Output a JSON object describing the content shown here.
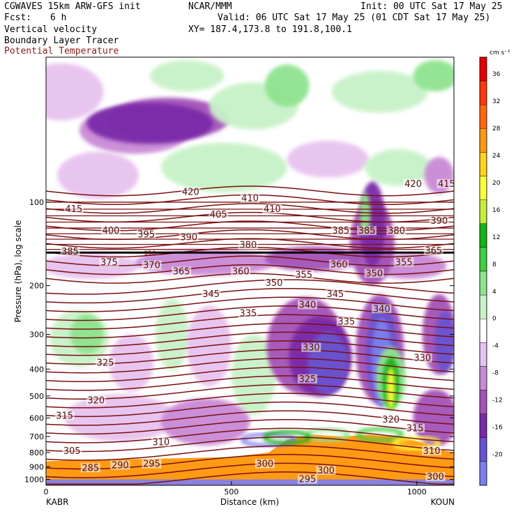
{
  "header": {
    "model": "CGWAVES 15km ARW-GFS init",
    "org": "NCAR/MMM",
    "init": "Init: 00 UTC Sat 17 May 25",
    "fcst_label": "Fcst:",
    "fcst_value": "6 h",
    "valid": "Valid: 06 UTC Sat 17 May 25 (01 CDT Sat 17 May 25)",
    "field1": "Vertical velocity",
    "field2": "Boundary Layer Tracer",
    "field3": "Potential Temperature",
    "xy": "XY= 187.4,173.8 to 191.8,100.1"
  },
  "colors": {
    "theta_line": "#7a0f0f",
    "theta_text": "#8b1a1a",
    "tropopause": "#000000"
  },
  "chart_data": {
    "type": "heatmap",
    "title": "Vertical velocity / Boundary Layer Tracer / Potential Temperature",
    "xlabel": "Distance (km)",
    "ylabel": "Pressure (hPa), log scale",
    "xlim": [
      0,
      1100
    ],
    "ylim": [
      1050,
      30
    ],
    "y_scale": "log",
    "x_ticks": [
      0,
      500,
      1000
    ],
    "x_tick_labels": [
      "0",
      "500",
      "1000"
    ],
    "y_ticks": [
      100,
      200,
      300,
      400,
      500,
      600,
      700,
      800,
      900,
      1000
    ],
    "y_tick_labels": [
      "100",
      "200",
      "300",
      "400",
      "500",
      "600",
      "700",
      "800",
      "900",
      "1000"
    ],
    "x_end_labels": {
      "left": "KABR",
      "right": "KOUN"
    },
    "colorbar": {
      "unit": "cm s⁻¹",
      "levels": [
        -20,
        -16,
        -12,
        -8,
        -4,
        0,
        4,
        8,
        12,
        16,
        20,
        24,
        28,
        32,
        36
      ],
      "level_labels": [
        "-20",
        "-16",
        "-12",
        "-8",
        "-4",
        "0",
        "4",
        "8",
        "12",
        "16",
        "20",
        "24",
        "28",
        "32",
        "36"
      ],
      "colors": [
        "#7b7ff0",
        "#6a53d0",
        "#7a2aa8",
        "#a353b8",
        "#c98ad6",
        "#e7c2ef",
        "#ffffff",
        "#c8f2c8",
        "#8fe38f",
        "#3fcf3f",
        "#16b316",
        "#c4ee3c",
        "#ffff3c",
        "#ffd21e",
        "#ff9a14",
        "#ff6a10",
        "#ff3a0a",
        "#e60000"
      ]
    },
    "theta_contour_labels": [
      {
        "label": "420",
        "x": 390,
        "p": 92
      },
      {
        "label": "410",
        "x": 550,
        "p": 97
      },
      {
        "label": "420",
        "x": 990,
        "p": 86
      },
      {
        "label": "415",
        "x": 1080,
        "p": 86
      },
      {
        "label": "415",
        "x": 75,
        "p": 106
      },
      {
        "label": "405",
        "x": 465,
        "p": 111
      },
      {
        "label": "410",
        "x": 610,
        "p": 106
      },
      {
        "label": "400",
        "x": 175,
        "p": 127
      },
      {
        "label": "395",
        "x": 270,
        "p": 131
      },
      {
        "label": "390",
        "x": 385,
        "p": 134
      },
      {
        "label": "385",
        "x": 795,
        "p": 127
      },
      {
        "label": "385",
        "x": 865,
        "p": 127
      },
      {
        "label": "380",
        "x": 945,
        "p": 127
      },
      {
        "label": "390",
        "x": 1060,
        "p": 117
      },
      {
        "label": "380",
        "x": 545,
        "p": 143
      },
      {
        "label": "385",
        "x": 65,
        "p": 151
      },
      {
        "label": "375",
        "x": 170,
        "p": 165
      },
      {
        "label": "370",
        "x": 285,
        "p": 169
      },
      {
        "label": "365",
        "x": 365,
        "p": 178
      },
      {
        "label": "360",
        "x": 525,
        "p": 178
      },
      {
        "label": "355",
        "x": 695,
        "p": 183
      },
      {
        "label": "360",
        "x": 790,
        "p": 168
      },
      {
        "label": "350",
        "x": 885,
        "p": 181
      },
      {
        "label": "355",
        "x": 965,
        "p": 165
      },
      {
        "label": "365",
        "x": 1045,
        "p": 150
      },
      {
        "label": "350",
        "x": 615,
        "p": 196
      },
      {
        "label": "345",
        "x": 445,
        "p": 215
      },
      {
        "label": "345",
        "x": 780,
        "p": 215
      },
      {
        "label": "340",
        "x": 705,
        "p": 235
      },
      {
        "label": "340",
        "x": 905,
        "p": 243
      },
      {
        "label": "335",
        "x": 545,
        "p": 252
      },
      {
        "label": "335",
        "x": 810,
        "p": 270
      },
      {
        "label": "330",
        "x": 715,
        "p": 335
      },
      {
        "label": "330",
        "x": 1015,
        "p": 365
      },
      {
        "label": "325",
        "x": 160,
        "p": 380
      },
      {
        "label": "325",
        "x": 705,
        "p": 435
      },
      {
        "label": "320",
        "x": 135,
        "p": 520
      },
      {
        "label": "320",
        "x": 930,
        "p": 610
      },
      {
        "label": "315",
        "x": 50,
        "p": 590
      },
      {
        "label": "315",
        "x": 995,
        "p": 655
      },
      {
        "label": "310",
        "x": 310,
        "p": 735
      },
      {
        "label": "310",
        "x": 1040,
        "p": 790
      },
      {
        "label": "305",
        "x": 70,
        "p": 790
      },
      {
        "label": "300",
        "x": 590,
        "p": 880
      },
      {
        "label": "300",
        "x": 755,
        "p": 930
      },
      {
        "label": "300",
        "x": 1050,
        "p": 980
      },
      {
        "label": "295",
        "x": 285,
        "p": 880
      },
      {
        "label": "295",
        "x": 705,
        "p": 1000
      },
      {
        "label": "290",
        "x": 200,
        "p": 890
      },
      {
        "label": "285",
        "x": 120,
        "p": 910
      }
    ],
    "theta_min_label_over_tropopause": "356"
  }
}
